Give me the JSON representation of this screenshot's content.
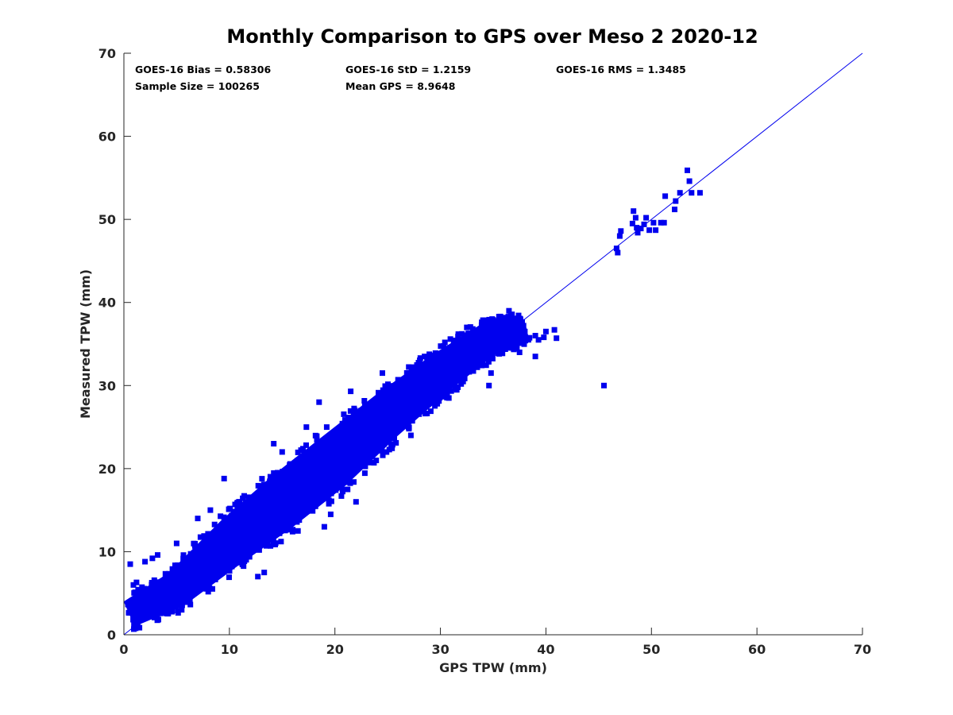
{
  "chart_data": {
    "type": "scatter",
    "title": "Monthly Comparison to GPS over Meso 2 2020-12",
    "xlabel": "GPS TPW (mm)",
    "ylabel": "Measured TPW (mm)",
    "xlim": [
      0,
      70
    ],
    "ylim": [
      0,
      70
    ],
    "xticks": [
      0,
      10,
      20,
      30,
      40,
      50,
      60,
      70
    ],
    "yticks": [
      0,
      10,
      20,
      30,
      40,
      50,
      60,
      70
    ],
    "grid": false,
    "marker_color": "#0000ee",
    "line_color": "#0000ee",
    "reference_line": {
      "label": "1:1",
      "from": [
        0,
        0
      ],
      "to": [
        70,
        70
      ]
    },
    "stats": {
      "bias": "GOES-16 Bias = 0.58306",
      "std": "GOES-16 StD = 1.2159",
      "rms": "GOES-16 RMS = 1.3485",
      "sample_size": "Sample Size = 100265",
      "mean_gps": "Mean GPS = 8.9648"
    },
    "cloud": {
      "description": "dense scatter cloud of approx. 100265 points along 1:1 line",
      "center": [
        [
          0.5,
          2.5
        ],
        [
          5,
          5.5
        ],
        [
          10,
          11
        ],
        [
          15,
          16
        ],
        [
          20,
          21
        ],
        [
          25,
          26.5
        ],
        [
          30,
          31.5
        ],
        [
          35,
          36
        ],
        [
          38,
          37
        ]
      ],
      "half_spread": [
        1.5,
        2.0,
        2.6,
        3.0,
        3.0,
        2.6,
        2.2,
        1.8,
        1.5
      ]
    },
    "outliers": [
      [
        0.6,
        8.5
      ],
      [
        0.9,
        6.0
      ],
      [
        1.2,
        6.3
      ],
      [
        2.0,
        8.8
      ],
      [
        2.7,
        9.2
      ],
      [
        3.2,
        9.6
      ],
      [
        5.0,
        11.0
      ],
      [
        7.0,
        14.0
      ],
      [
        8.2,
        15.0
      ],
      [
        9.5,
        18.8
      ],
      [
        11.8,
        16.5
      ],
      [
        12.7,
        7.0
      ],
      [
        13.3,
        7.5
      ],
      [
        14.2,
        23.0
      ],
      [
        15.0,
        22.0
      ],
      [
        16.5,
        12.5
      ],
      [
        17.3,
        25.0
      ],
      [
        18.5,
        28.0
      ],
      [
        19.0,
        13.0
      ],
      [
        19.6,
        14.5
      ],
      [
        21.2,
        17.5
      ],
      [
        21.5,
        29.3
      ],
      [
        22.0,
        16.0
      ],
      [
        22.7,
        24.5
      ],
      [
        24.5,
        31.5
      ],
      [
        25.0,
        28.5
      ],
      [
        27.2,
        24.0
      ],
      [
        28.5,
        33.5
      ],
      [
        30.8,
        28.5
      ],
      [
        32.5,
        37.0
      ],
      [
        33.0,
        32.5
      ],
      [
        34.0,
        33.0
      ],
      [
        34.6,
        30.0
      ],
      [
        34.8,
        31.5
      ],
      [
        34.9,
        38.0
      ],
      [
        35.7,
        37.6
      ],
      [
        36.5,
        39.0
      ],
      [
        36.8,
        36.0
      ],
      [
        37.2,
        37.5
      ],
      [
        37.5,
        34.0
      ],
      [
        38.0,
        36.5
      ],
      [
        39.0,
        36.0
      ],
      [
        39.3,
        35.5
      ],
      [
        39.8,
        35.8
      ],
      [
        40.0,
        36.5
      ],
      [
        39.0,
        33.5
      ],
      [
        40.8,
        36.7
      ],
      [
        41.0,
        35.7
      ],
      [
        45.5,
        30.0
      ],
      [
        46.7,
        46.5
      ],
      [
        46.8,
        46.0
      ],
      [
        47.0,
        48.0
      ],
      [
        47.1,
        48.6
      ],
      [
        48.2,
        49.5
      ],
      [
        48.3,
        51.0
      ],
      [
        48.5,
        50.2
      ],
      [
        48.6,
        49.0
      ],
      [
        48.7,
        48.4
      ],
      [
        49.0,
        48.9
      ],
      [
        49.3,
        49.4
      ],
      [
        49.5,
        50.2
      ],
      [
        49.8,
        48.7
      ],
      [
        50.2,
        49.6
      ],
      [
        50.4,
        48.7
      ],
      [
        50.9,
        49.6
      ],
      [
        51.2,
        49.6
      ],
      [
        51.3,
        52.8
      ],
      [
        52.2,
        51.2
      ],
      [
        52.3,
        52.2
      ],
      [
        52.7,
        53.2
      ],
      [
        53.4,
        55.9
      ],
      [
        53.6,
        54.6
      ],
      [
        53.8,
        53.2
      ],
      [
        54.6,
        53.2
      ]
    ]
  }
}
